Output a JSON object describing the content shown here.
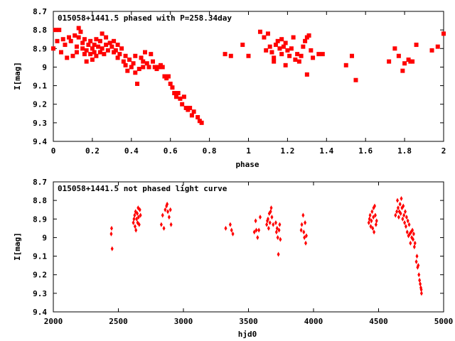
{
  "chart_data": [
    {
      "type": "scatter",
      "title": "015058+1441.5 phased with P=258.34day",
      "xlabel": "phase",
      "ylabel": "I[mag]",
      "xlim": [
        0,
        2
      ],
      "ylim": [
        8.7,
        9.4
      ],
      "y_inverted": true,
      "xticks": [
        0,
        0.2,
        0.4,
        0.6,
        0.8,
        1,
        1.2,
        1.4,
        1.6,
        1.8,
        2
      ],
      "xtick_labels": [
        "0",
        "0.2",
        "0.4",
        "0.6",
        "0.8",
        "1",
        "1.2",
        "1.4",
        "1.6",
        "1.8",
        "2"
      ],
      "yticks": [
        8.7,
        8.8,
        8.9,
        9.0,
        9.1,
        9.2,
        9.3,
        9.4
      ],
      "ytick_labels": [
        "8.7",
        "8.8",
        "8.9",
        "9",
        "9.1",
        "9.2",
        "9.3",
        "9.4"
      ],
      "marker": "filled-square",
      "color": "#ff0000",
      "series": [
        {
          "name": "phased",
          "points": [
            [
              0.0,
              8.9
            ],
            [
              0.01,
              8.8
            ],
            [
              0.02,
              8.86
            ],
            [
              0.03,
              8.8
            ],
            [
              0.04,
              8.92
            ],
            [
              0.05,
              8.85
            ],
            [
              0.06,
              8.88
            ],
            [
              0.07,
              8.95
            ],
            [
              0.08,
              8.84
            ],
            [
              0.09,
              8.86
            ],
            [
              0.1,
              8.94
            ],
            [
              0.11,
              8.83
            ],
            [
              0.12,
              8.89
            ],
            [
              0.12,
              8.92
            ],
            [
              0.13,
              8.84
            ],
            [
              0.13,
              8.79
            ],
            [
              0.14,
              8.81
            ],
            [
              0.15,
              8.87
            ],
            [
              0.15,
              8.9
            ],
            [
              0.16,
              8.93
            ],
            [
              0.16,
              8.85
            ],
            [
              0.17,
              8.91
            ],
            [
              0.17,
              8.97
            ],
            [
              0.18,
              8.88
            ],
            [
              0.19,
              8.86
            ],
            [
              0.19,
              8.93
            ],
            [
              0.2,
              8.9
            ],
            [
              0.2,
              8.96
            ],
            [
              0.21,
              8.88
            ],
            [
              0.21,
              8.92
            ],
            [
              0.22,
              8.85
            ],
            [
              0.22,
              8.94
            ],
            [
              0.23,
              8.89
            ],
            [
              0.24,
              8.92
            ],
            [
              0.24,
              8.86
            ],
            [
              0.25,
              8.82
            ],
            [
              0.25,
              8.9
            ],
            [
              0.26,
              8.93
            ],
            [
              0.27,
              8.88
            ],
            [
              0.27,
              8.84
            ],
            [
              0.28,
              8.91
            ],
            [
              0.29,
              8.87
            ],
            [
              0.3,
              8.89
            ],
            [
              0.31,
              8.92
            ],
            [
              0.31,
              8.86
            ],
            [
              0.32,
              8.91
            ],
            [
              0.33,
              8.88
            ],
            [
              0.33,
              8.95
            ],
            [
              0.34,
              8.93
            ],
            [
              0.35,
              8.9
            ],
            [
              0.36,
              8.97
            ],
            [
              0.37,
              8.94
            ],
            [
              0.37,
              8.99
            ],
            [
              0.38,
              9.02
            ],
            [
              0.39,
              8.96
            ],
            [
              0.4,
              9.0
            ],
            [
              0.41,
              8.98
            ],
            [
              0.42,
              9.03
            ],
            [
              0.42,
              8.94
            ],
            [
              0.43,
              9.09
            ],
            [
              0.44,
              9.01
            ],
            [
              0.45,
              8.95
            ],
            [
              0.46,
              8.97
            ],
            [
              0.46,
              9.0
            ],
            [
              0.47,
              8.92
            ],
            [
              0.48,
              8.98
            ],
            [
              0.49,
              9.0
            ],
            [
              0.5,
              8.93
            ],
            [
              0.51,
              8.97
            ],
            [
              0.52,
              9.0
            ],
            [
              0.53,
              9.01
            ],
            [
              0.54,
              9.0
            ],
            [
              0.55,
              8.99
            ],
            [
              0.56,
              9.0
            ],
            [
              0.57,
              9.05
            ],
            [
              0.58,
              9.06
            ],
            [
              0.59,
              9.05
            ],
            [
              0.6,
              9.09
            ],
            [
              0.61,
              9.11
            ],
            [
              0.62,
              9.14
            ],
            [
              0.63,
              9.16
            ],
            [
              0.64,
              9.14
            ],
            [
              0.65,
              9.17
            ],
            [
              0.66,
              9.2
            ],
            [
              0.67,
              9.16
            ],
            [
              0.68,
              9.22
            ],
            [
              0.69,
              9.23
            ],
            [
              0.7,
              9.22
            ],
            [
              0.71,
              9.26
            ],
            [
              0.72,
              9.24
            ],
            [
              0.74,
              9.27
            ],
            [
              0.75,
              9.29
            ],
            [
              0.76,
              9.3
            ],
            [
              0.88,
              8.93
            ],
            [
              0.91,
              8.94
            ],
            [
              0.97,
              8.88
            ],
            [
              1.0,
              8.94
            ],
            [
              1.06,
              8.81
            ],
            [
              1.08,
              8.84
            ],
            [
              1.1,
              8.82
            ],
            [
              1.09,
              8.91
            ],
            [
              1.11,
              8.89
            ],
            [
              1.12,
              8.92
            ],
            [
              1.13,
              8.95
            ],
            [
              1.13,
              8.97
            ],
            [
              1.14,
              8.88
            ],
            [
              1.15,
              8.86
            ],
            [
              1.16,
              8.9
            ],
            [
              1.17,
              8.93
            ],
            [
              1.17,
              8.85
            ],
            [
              1.18,
              8.89
            ],
            [
              1.19,
              8.87
            ],
            [
              1.19,
              8.99
            ],
            [
              1.2,
              8.91
            ],
            [
              1.21,
              8.94
            ],
            [
              1.22,
              8.9
            ],
            [
              1.23,
              8.84
            ],
            [
              1.24,
              8.96
            ],
            [
              1.25,
              8.93
            ],
            [
              1.26,
              8.97
            ],
            [
              1.27,
              8.94
            ],
            [
              1.28,
              8.89
            ],
            [
              1.29,
              8.86
            ],
            [
              1.3,
              8.84
            ],
            [
              1.3,
              9.04
            ],
            [
              1.31,
              8.83
            ],
            [
              1.32,
              8.91
            ],
            [
              1.33,
              8.95
            ],
            [
              1.36,
              8.93
            ],
            [
              1.38,
              8.93
            ],
            [
              1.5,
              8.99
            ],
            [
              1.53,
              8.94
            ],
            [
              1.55,
              9.07
            ],
            [
              1.72,
              8.97
            ],
            [
              1.75,
              8.9
            ],
            [
              1.77,
              8.94
            ],
            [
              1.79,
              9.02
            ],
            [
              1.8,
              8.98
            ],
            [
              1.82,
              8.96
            ],
            [
              1.83,
              8.97
            ],
            [
              1.84,
              8.97
            ],
            [
              1.86,
              8.88
            ],
            [
              1.94,
              8.91
            ],
            [
              1.97,
              8.89
            ],
            [
              2.0,
              8.82
            ]
          ]
        }
      ]
    },
    {
      "type": "scatter",
      "title": "015058+1441.5 not phased light curve",
      "xlabel": "hjd0",
      "ylabel": "I[mag]",
      "xlim": [
        2000,
        5000
      ],
      "ylim": [
        8.7,
        9.4
      ],
      "y_inverted": true,
      "xticks": [
        2000,
        2500,
        3000,
        3500,
        4000,
        4500,
        5000
      ],
      "xtick_labels": [
        "2000",
        "2500",
        "3000",
        "3500",
        "4000",
        "4500",
        "5000"
      ],
      "yticks": [
        8.7,
        8.8,
        8.9,
        9.0,
        9.1,
        9.2,
        9.3,
        9.4
      ],
      "ytick_labels": [
        "8.7",
        "8.8",
        "8.9",
        "9",
        "9.1",
        "9.2",
        "9.3",
        "9.4"
      ],
      "marker": "filled-diamond",
      "color": "#ff0000",
      "series": [
        {
          "name": "unphased",
          "points": [
            [
              2445,
              8.98
            ],
            [
              2448,
              8.95
            ],
            [
              2452,
              9.06
            ],
            [
              2615,
              8.92
            ],
            [
              2620,
              8.9
            ],
            [
              2625,
              8.88
            ],
            [
              2628,
              8.94
            ],
            [
              2632,
              8.86
            ],
            [
              2635,
              8.96
            ],
            [
              2640,
              8.9
            ],
            [
              2645,
              8.87
            ],
            [
              2648,
              8.92
            ],
            [
              2652,
              8.84
            ],
            [
              2655,
              8.89
            ],
            [
              2660,
              8.93
            ],
            [
              2665,
              8.85
            ],
            [
              2670,
              8.88
            ],
            [
              2830,
              8.93
            ],
            [
              2840,
              8.88
            ],
            [
              2850,
              8.95
            ],
            [
              2860,
              8.85
            ],
            [
              2870,
              8.83
            ],
            [
              2875,
              8.82
            ],
            [
              2880,
              8.86
            ],
            [
              2890,
              8.89
            ],
            [
              2900,
              8.85
            ],
            [
              2905,
              8.93
            ],
            [
              3325,
              8.95
            ],
            [
              3360,
              8.93
            ],
            [
              3370,
              8.96
            ],
            [
              3380,
              8.98
            ],
            [
              3545,
              8.97
            ],
            [
              3555,
              8.91
            ],
            [
              3560,
              8.96
            ],
            [
              3570,
              9.0
            ],
            [
              3580,
              8.96
            ],
            [
              3590,
              8.89
            ],
            [
              3640,
              8.93
            ],
            [
              3645,
              8.91
            ],
            [
              3650,
              8.9
            ],
            [
              3655,
              8.95
            ],
            [
              3660,
              8.87
            ],
            [
              3665,
              8.92
            ],
            [
              3670,
              8.86
            ],
            [
              3675,
              8.84
            ],
            [
              3680,
              8.89
            ],
            [
              3690,
              8.93
            ],
            [
              3710,
              8.92
            ],
            [
              3715,
              8.97
            ],
            [
              3720,
              8.95
            ],
            [
              3725,
              9.0
            ],
            [
              3730,
              9.09
            ],
            [
              3735,
              8.96
            ],
            [
              3740,
              8.93
            ],
            [
              3745,
              9.01
            ],
            [
              3905,
              8.96
            ],
            [
              3910,
              8.93
            ],
            [
              3920,
              8.88
            ],
            [
              3925,
              8.97
            ],
            [
              3930,
              9.0
            ],
            [
              3935,
              8.92
            ],
            [
              3940,
              9.03
            ],
            [
              3945,
              8.99
            ],
            [
              4425,
              8.92
            ],
            [
              4430,
              8.9
            ],
            [
              4435,
              8.88
            ],
            [
              4440,
              8.94
            ],
            [
              4445,
              8.91
            ],
            [
              4450,
              8.86
            ],
            [
              4455,
              8.95
            ],
            [
              4460,
              8.89
            ],
            [
              4462,
              8.84
            ],
            [
              4465,
              8.97
            ],
            [
              4470,
              8.83
            ],
            [
              4475,
              8.88
            ],
            [
              4480,
              8.93
            ],
            [
              4485,
              8.91
            ],
            [
              4630,
              8.88
            ],
            [
              4640,
              8.86
            ],
            [
              4645,
              8.8
            ],
            [
              4650,
              8.84
            ],
            [
              4655,
              8.89
            ],
            [
              4660,
              8.86
            ],
            [
              4665,
              8.82
            ],
            [
              4670,
              8.87
            ],
            [
              4675,
              8.79
            ],
            [
              4680,
              8.84
            ],
            [
              4685,
              8.9
            ],
            [
              4690,
              8.83
            ],
            [
              4695,
              8.88
            ],
            [
              4700,
              8.92
            ],
            [
              4705,
              8.86
            ],
            [
              4710,
              8.94
            ],
            [
              4715,
              8.89
            ],
            [
              4720,
              8.97
            ],
            [
              4725,
              8.91
            ],
            [
              4730,
              8.99
            ],
            [
              4735,
              8.93
            ],
            [
              4740,
              8.98
            ],
            [
              4745,
              9.03
            ],
            [
              4750,
              8.97
            ],
            [
              4755,
              9.0
            ],
            [
              4760,
              8.96
            ],
            [
              4765,
              9.01
            ],
            [
              4770,
              8.98
            ],
            [
              4775,
              9.05
            ],
            [
              4780,
              9.03
            ],
            [
              4790,
              9.13
            ],
            [
              4795,
              9.1
            ],
            [
              4800,
              9.16
            ],
            [
              4805,
              9.15
            ],
            [
              4810,
              9.2
            ],
            [
              4815,
              9.23
            ],
            [
              4820,
              9.25
            ],
            [
              4825,
              9.27
            ],
            [
              4828,
              9.28
            ],
            [
              4830,
              9.3
            ]
          ]
        }
      ]
    }
  ]
}
